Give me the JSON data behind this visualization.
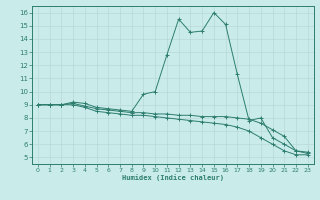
{
  "x": [
    0,
    1,
    2,
    3,
    4,
    5,
    6,
    7,
    8,
    9,
    10,
    11,
    12,
    13,
    14,
    15,
    16,
    17,
    18,
    19,
    20,
    21,
    22,
    23
  ],
  "line1": [
    9,
    9,
    9,
    9.2,
    9.1,
    8.8,
    8.7,
    8.6,
    8.5,
    9.8,
    10.0,
    12.8,
    15.5,
    14.5,
    14.6,
    16.0,
    15.1,
    11.3,
    7.8,
    8.0,
    6.5,
    6.0,
    5.5,
    5.4
  ],
  "line2": [
    9,
    9,
    9,
    9.1,
    8.9,
    8.7,
    8.6,
    8.5,
    8.4,
    8.4,
    8.3,
    8.3,
    8.2,
    8.2,
    8.1,
    8.1,
    8.1,
    8.0,
    7.9,
    7.6,
    7.1,
    6.6,
    5.5,
    5.3
  ],
  "line3": [
    9,
    9,
    9,
    9.0,
    8.8,
    8.5,
    8.4,
    8.3,
    8.2,
    8.2,
    8.1,
    8.0,
    7.9,
    7.8,
    7.7,
    7.6,
    7.5,
    7.3,
    7.0,
    6.5,
    6.0,
    5.5,
    5.2,
    5.2
  ],
  "color": "#2d7d6e",
  "bg_color": "#c9ecea",
  "grid_color": "#b8d8d8",
  "xlabel": "Humidex (Indice chaleur)",
  "xlim": [
    -0.5,
    23.5
  ],
  "ylim": [
    4.5,
    16.5
  ],
  "yticks": [
    5,
    6,
    7,
    8,
    9,
    10,
    11,
    12,
    13,
    14,
    15,
    16
  ],
  "xticks": [
    0,
    1,
    2,
    3,
    4,
    5,
    6,
    7,
    8,
    9,
    10,
    11,
    12,
    13,
    14,
    15,
    16,
    17,
    18,
    19,
    20,
    21,
    22,
    23
  ]
}
